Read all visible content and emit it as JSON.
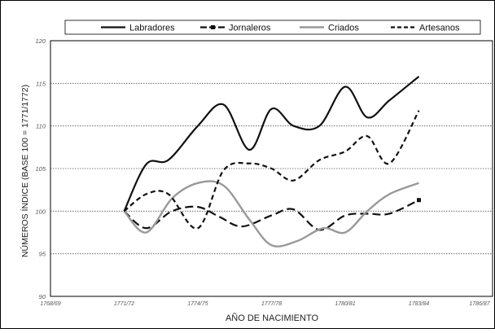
{
  "chart_data": {
    "type": "line",
    "title": "",
    "xlabel": "AÑO DE NACIMIENTO",
    "ylabel": "NÚMEROS ÍNDICE (BASE 100 = 1771/1772)",
    "ylim": [
      90,
      120
    ],
    "yticks": [
      90,
      95,
      100,
      105,
      110,
      115,
      120
    ],
    "grid": "horizontal dotted",
    "legend_position": "top",
    "categories": [
      "1768/69",
      "1771/72",
      "1774/75",
      "1777/78",
      "1780/81",
      "1783/84",
      "1786/87"
    ],
    "series": [
      {
        "name": "Labradores",
        "style": "solid",
        "color": "#111111",
        "points": [
          [
            1,
            100
          ],
          [
            1.3,
            105.5
          ],
          [
            1.6,
            106
          ],
          [
            2,
            110
          ],
          [
            2.35,
            112.5
          ],
          [
            2.7,
            107.2
          ],
          [
            3,
            112
          ],
          [
            3.3,
            110
          ],
          [
            3.65,
            110
          ],
          [
            4,
            114.6
          ],
          [
            4.3,
            111
          ],
          [
            4.6,
            113
          ],
          [
            5,
            115.8
          ]
        ]
      },
      {
        "name": "Jornaleros",
        "style": "long-dash-square",
        "color": "#111111",
        "points": [
          [
            1,
            100
          ],
          [
            1.3,
            98
          ],
          [
            1.65,
            100
          ],
          [
            2,
            100.5
          ],
          [
            2.3,
            99.3
          ],
          [
            2.6,
            98.2
          ],
          [
            3,
            99.5
          ],
          [
            3.3,
            100.2
          ],
          [
            3.65,
            97.8
          ],
          [
            4,
            99.5
          ],
          [
            4.3,
            99.7
          ],
          [
            4.6,
            99.7
          ],
          [
            5,
            101.3
          ]
        ]
      },
      {
        "name": "Criados",
        "style": "solid",
        "color": "#999999",
        "points": [
          [
            1,
            100
          ],
          [
            1.3,
            97.5
          ],
          [
            1.65,
            101.5
          ],
          [
            2,
            103.3
          ],
          [
            2.35,
            103
          ],
          [
            2.7,
            99
          ],
          [
            3,
            96
          ],
          [
            3.35,
            96.5
          ],
          [
            3.7,
            98
          ],
          [
            4,
            97.5
          ],
          [
            4.3,
            100
          ],
          [
            4.6,
            102
          ],
          [
            5,
            103.3
          ]
        ]
      },
      {
        "name": "Artesanos",
        "style": "dashed",
        "color": "#111111",
        "points": [
          [
            1,
            100
          ],
          [
            1.3,
            102
          ],
          [
            1.6,
            102
          ],
          [
            2,
            98
          ],
          [
            2.35,
            104.8
          ],
          [
            2.7,
            105.6
          ],
          [
            3,
            105
          ],
          [
            3.3,
            103.6
          ],
          [
            3.65,
            106
          ],
          [
            4,
            107
          ],
          [
            4.3,
            108.8
          ],
          [
            4.6,
            105.6
          ],
          [
            5,
            111.8
          ]
        ]
      }
    ]
  }
}
